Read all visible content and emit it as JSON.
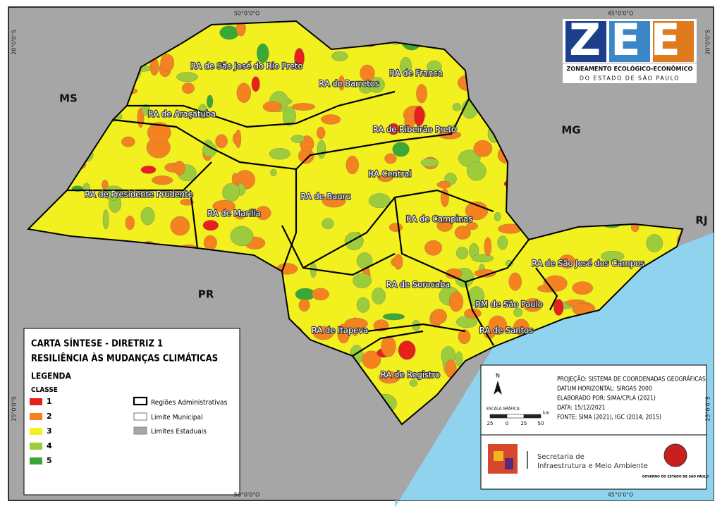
{
  "logo": {
    "letters": "ZEE",
    "line1": "ZONEAMENTO ECOLÓGICO-ECONÔMICO",
    "line2": "DO ESTADO DE SÃO PAULO"
  },
  "graticule": {
    "top": [
      "50°0'0\"O",
      "45°0'0\"O"
    ],
    "bottom": [
      "50°0'0\"O",
      "45°0'0\"O"
    ],
    "left": [
      "20°0'0\"S",
      "25°0'0\"S"
    ],
    "right": [
      "20°0'0\"S",
      "25°0'0\"S"
    ]
  },
  "states": [
    "MS",
    "MG",
    "RJ",
    "PR"
  ],
  "regions": [
    "RA de São José do Rio Preto",
    "RA de Barretos",
    "RA de Franca",
    "RA de Araçatuba",
    "RA de Ribeirão Preto",
    "RA Central",
    "RA de Presidente Prudente",
    "RA de Bauru",
    "RA de Marília",
    "RA de Campinas",
    "RA de São José dos Campos",
    "RA de Sorocaba",
    "RM de São Paulo",
    "RA de Santos",
    "RA de Itapeva",
    "RA de Registro"
  ],
  "legend": {
    "title": "CARTA SÍNTESE - DIRETRIZ 1",
    "subtitle": "RESILIÊNCIA ÀS MUDANÇAS CLIMÁTICAS",
    "heading": "LEGENDA",
    "class_heading": "CLASSE",
    "classes": [
      {
        "label": "1",
        "color": "#e8201c"
      },
      {
        "label": "2",
        "color": "#f5821f"
      },
      {
        "label": "3",
        "color": "#f2f01e"
      },
      {
        "label": "4",
        "color": "#9ccc3c"
      },
      {
        "label": "5",
        "color": "#3aa835"
      }
    ],
    "boundaries": [
      "Regiões Administrativas",
      "Limite Municipal",
      "Limites Estaduais"
    ]
  },
  "info": {
    "lines": [
      "PROJEÇÃO: SISTEMA DE COORDENADAS GEOGRÁFICAS",
      "DATUM HORIZONTAL: SIRGAS 2000",
      "ELABORADO POR: SIMA/CPLA (2021)",
      "DATA: 15/12/2021",
      "FONTE: SIMA (2021), IGC (2014, 2015)"
    ],
    "north": "N",
    "scale_title": "ESCALA GRÁFICA:",
    "scale_ticks": [
      25,
      0,
      25,
      50
    ],
    "scale_unit": "km",
    "secretaria": [
      "Secretaria de",
      "Infraestrutura e Meio Ambiente"
    ],
    "governo": "GOVERNO DO ESTADO DE SÃO PAULO"
  }
}
